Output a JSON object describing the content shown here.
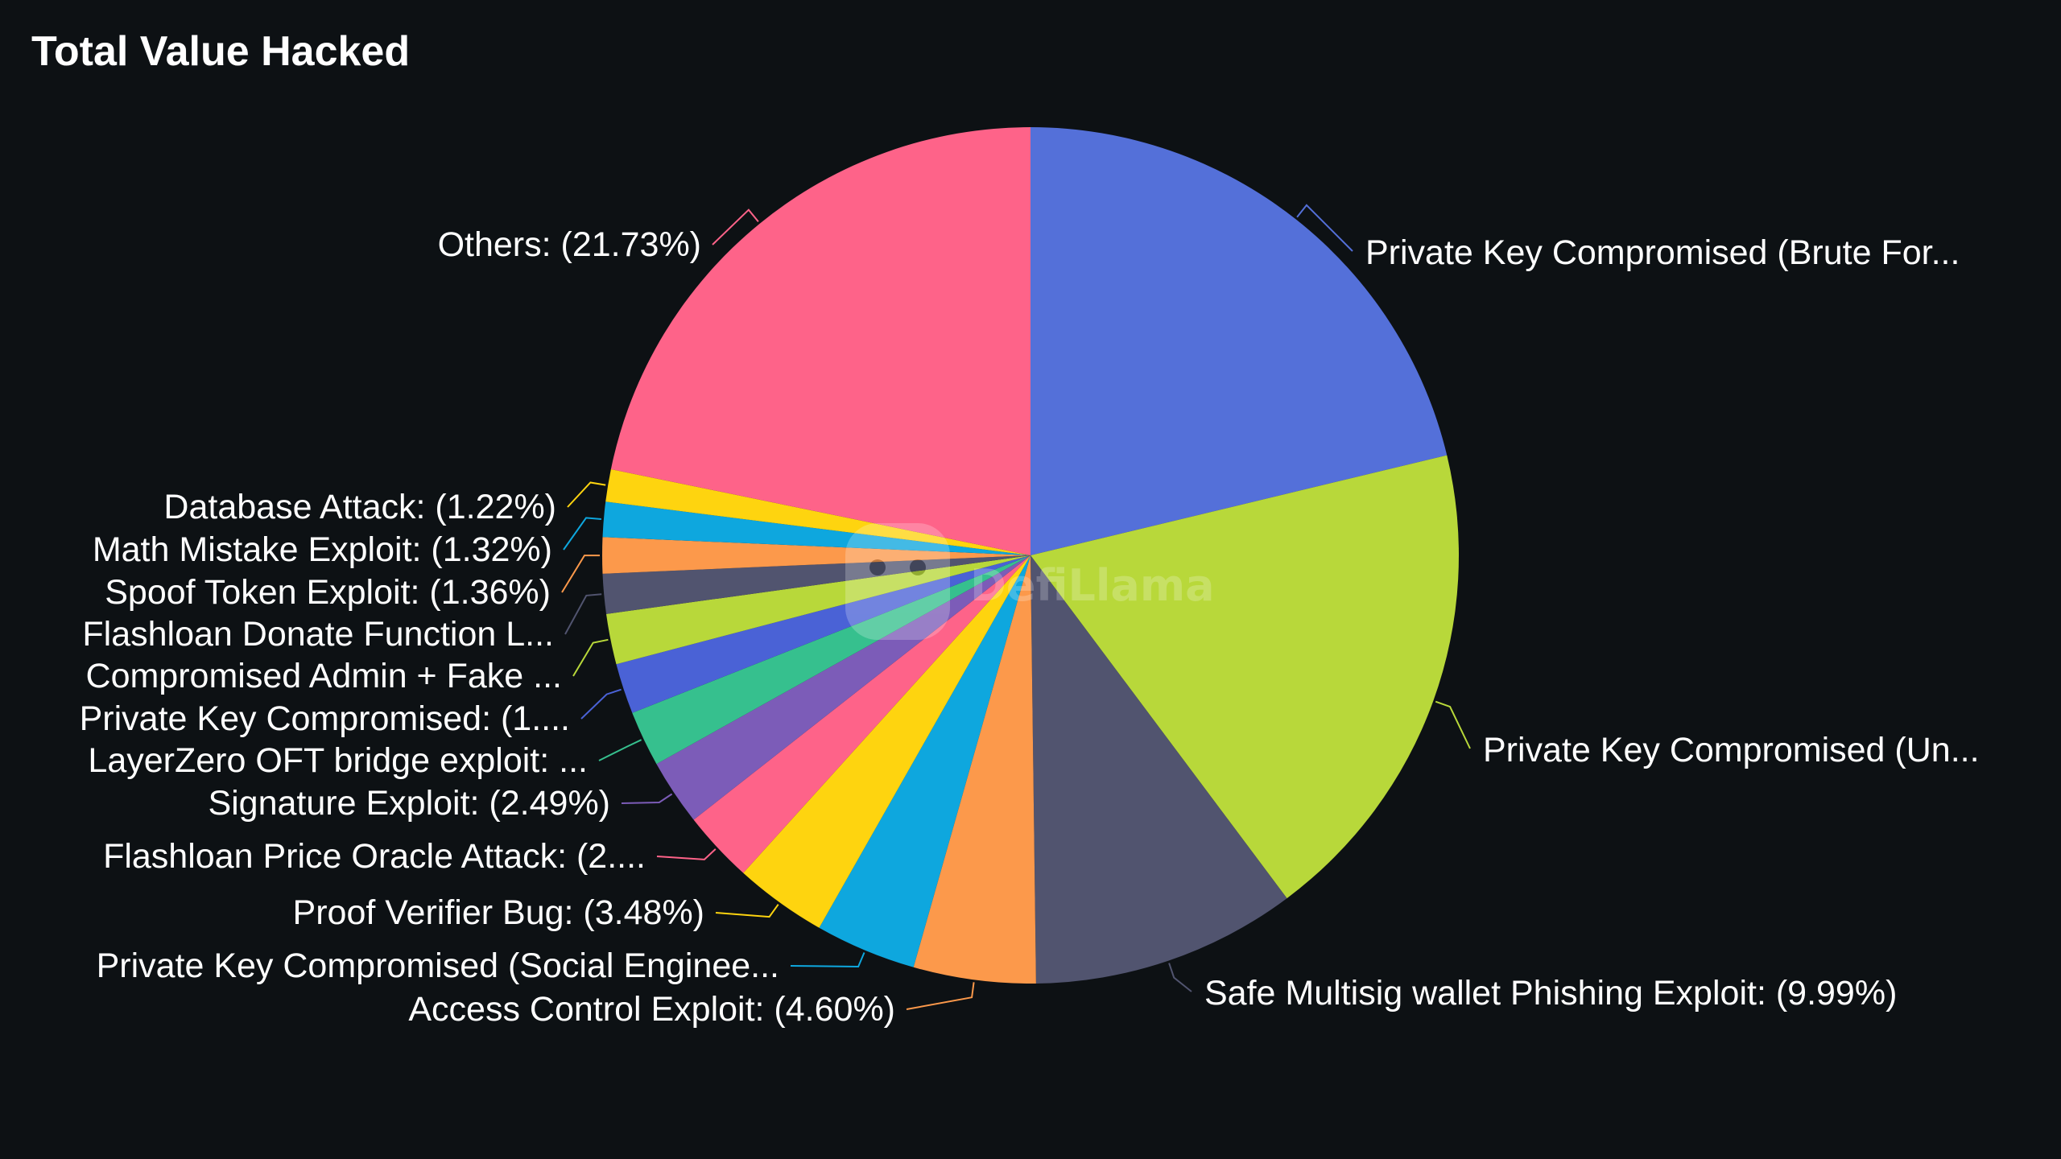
{
  "chart_data": {
    "type": "pie",
    "title": "Total Value Hacked",
    "watermark": "DefiLlama",
    "start_angle_deg": 0,
    "direction": "clockwise",
    "slices": [
      {
        "label": "Private Key Compromised (Brute For...",
        "value": 21.2,
        "color": "#5470d9"
      },
      {
        "label": "Private Key Compromised (Un...",
        "value": 18.5,
        "color": "#b8d83a"
      },
      {
        "label": "Safe Multisig wallet Phishing Exploit: (9.99%)",
        "value": 9.99,
        "color": "#51546f"
      },
      {
        "label": "Access Control Exploit: (4.60%)",
        "value": 4.6,
        "color": "#fc994b"
      },
      {
        "label": "Private Key Compromised (Social Enginee...",
        "value": 3.8,
        "color": "#0ea7de"
      },
      {
        "label": "Proof Verifier Bug: (3.48%)",
        "value": 3.48,
        "color": "#fed40f"
      },
      {
        "label": "Flashloan Price Oracle Attack: (2....",
        "value": 2.7,
        "color": "#fe6389"
      },
      {
        "label": "Signature Exploit: (2.49%)",
        "value": 2.49,
        "color": "#7c5cb8"
      },
      {
        "label": "LayerZero OFT bridge exploit: ...",
        "value": 2.1,
        "color": "#36c08e"
      },
      {
        "label": "Private Key Compromised: (1....",
        "value": 1.9,
        "color": "#4a62d6"
      },
      {
        "label": "Compromised Admin + Fake ...",
        "value": 1.9,
        "color": "#b8d83a"
      },
      {
        "label": "Flashloan Donate Function L...",
        "value": 1.5,
        "color": "#51546f"
      },
      {
        "label": "Spoof Token Exploit: (1.36%)",
        "value": 1.36,
        "color": "#fc994b"
      },
      {
        "label": "Math Mistake Exploit: (1.32%)",
        "value": 1.32,
        "color": "#0ea7de"
      },
      {
        "label": "Database Attack: (1.22%)",
        "value": 1.22,
        "color": "#fed40f"
      },
      {
        "label": "Others: (21.73%)",
        "value": 21.73,
        "color": "#fe6389"
      }
    ]
  }
}
